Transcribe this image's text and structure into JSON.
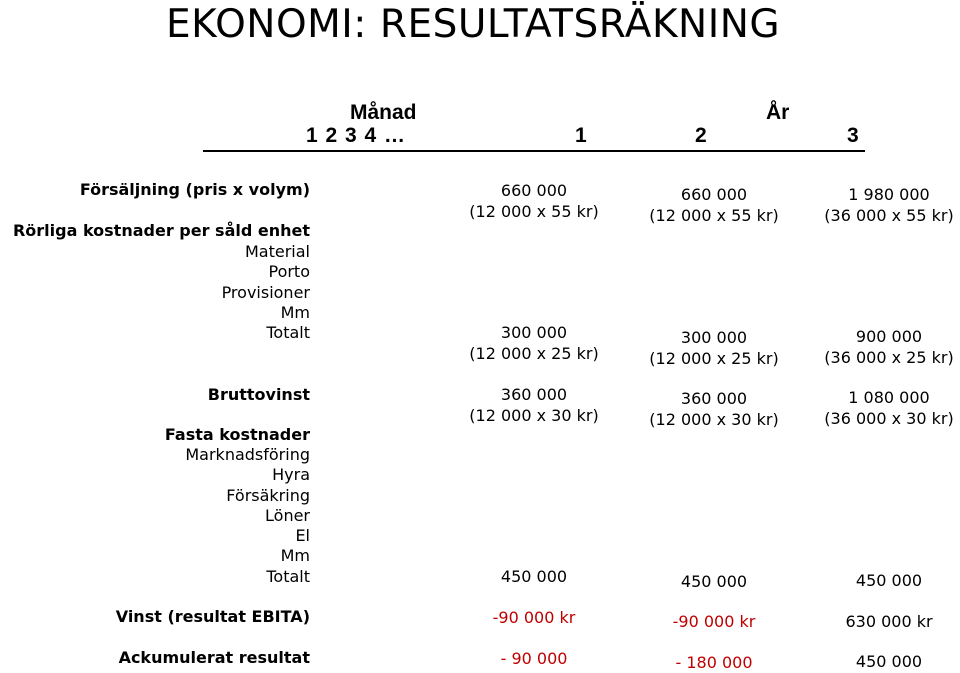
{
  "title": "EKONOMI: RESULTATSRÄKNING",
  "header": {
    "manad_label": "Månad",
    "ar_label": "År",
    "months": "1 2 3 4 …",
    "year1": "1",
    "year2": "2",
    "year3": "3"
  },
  "rows": {
    "forsaljning": "Försäljning (pris x volym)",
    "rorliga": "Rörliga kostnader per såld enhet",
    "material": "Material",
    "porto": "Porto",
    "provisioner": "Provisioner",
    "mm1": "Mm",
    "totalt1": "Totalt",
    "bruttovinst": "Bruttovinst",
    "fasta": "Fasta kostnader",
    "marknadsforing": "Marknadsföring",
    "hyra": "Hyra",
    "forsakring": "Försäkring",
    "loner": "Löner",
    "el": "El",
    "mm2": "Mm",
    "totalt2": "Totalt",
    "vinst": "Vinst (resultat EBITA)",
    "ackumulerat": "Ackumulerat resultat"
  },
  "values": {
    "y1": {
      "sales": "660 000",
      "sales_calc": "(12 000 x 55 kr)",
      "var": "300 000",
      "var_calc": "(12 000 x 25 kr)",
      "gross": "360 000",
      "gross_calc": "(12 000 x 30 kr)",
      "fixed": "450 000",
      "profit": "-90 000 kr",
      "acc": "- 90 000"
    },
    "y2": {
      "sales": "660 000",
      "sales_calc": "(12 000 x 55 kr)",
      "var": "300 000",
      "var_calc": "(12 000 x 25 kr)",
      "gross": "360 000",
      "gross_calc": "(12 000 x 30 kr)",
      "fixed": "450 000",
      "profit": "-90 000 kr",
      "acc": "- 180 000"
    },
    "y3": {
      "sales": "1 980 000",
      "sales_calc": "(36 000 x 55 kr)",
      "var": "900 000",
      "var_calc": "(36 000 x 25 kr)",
      "gross": "1 080 000",
      "gross_calc": "(36 000 x 30 kr)",
      "fixed": "450 000",
      "profit": "630 000 kr",
      "acc": "450 000"
    }
  },
  "colors": {
    "negative": "#c00000",
    "text": "#000000"
  }
}
